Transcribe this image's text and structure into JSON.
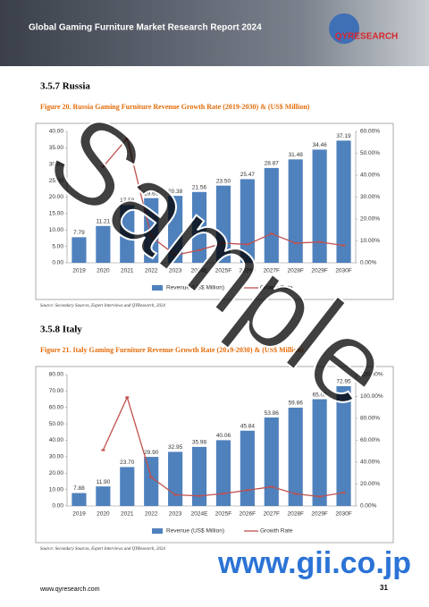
{
  "header": {
    "title": "Global Gaming Furniture Market Research Report 2024",
    "logo": "QYRESEARCH"
  },
  "sections": [
    {
      "heading": "3.5.7  Russia"
    },
    {
      "heading": "3.5.8  Italy"
    }
  ],
  "chart_data": [
    {
      "type": "combo",
      "title": "Figure 20.   Russia Gaming Furniture Revenue Growth Rate (2019-2030) & (US$ Million)",
      "categories": [
        "2019",
        "2020",
        "2021",
        "2022",
        "2023",
        "2024E",
        "2025F",
        "2026F",
        "2027F",
        "2028F",
        "2029F",
        "2030F"
      ],
      "series": [
        {
          "name": "Revenue (US$ Million)",
          "color": "#4f81bd",
          "values": [
            7.79,
            11.21,
            17.58,
            19.69,
            20.38,
            21.56,
            23.5,
            25.47,
            28.87,
            31.48,
            34.46,
            37.19
          ],
          "value_labels": [
            "7.79",
            "11.21",
            "17.58",
            "19.69",
            "20.38",
            "21.56",
            "23.50",
            "25.47",
            "28.87",
            "31.48",
            "34.46",
            "37.19"
          ]
        },
        {
          "name": "Growth Rate",
          "color": "#c0504d",
          "axis": "y2",
          "values": [
            null,
            43.9,
            56.8,
            12.0,
            3.5,
            5.8,
            9.0,
            8.4,
            13.3,
            9.0,
            9.5,
            7.9
          ]
        }
      ],
      "ylim": [
        0,
        40
      ],
      "yticks": [
        {
          "value": 0,
          "label": "0.00"
        },
        {
          "value": 5,
          "label": "5.00"
        },
        {
          "value": 10,
          "label": "10.00"
        },
        {
          "value": 15,
          "label": "15.00"
        },
        {
          "value": 20,
          "label": "20.00"
        },
        {
          "value": 25,
          "label": "25.00"
        },
        {
          "value": 30,
          "label": "30.00"
        },
        {
          "value": 35,
          "label": "35.00"
        },
        {
          "value": 40,
          "label": "40.00"
        }
      ],
      "y2lim": [
        0,
        60
      ],
      "y2ticks": [
        {
          "value": 0,
          "label": "0.00%"
        },
        {
          "value": 10,
          "label": "10.00%"
        },
        {
          "value": 20,
          "label": "20.00%"
        },
        {
          "value": 30,
          "label": "30.00%"
        },
        {
          "value": 40,
          "label": "40.00%"
        },
        {
          "value": 50,
          "label": "50.00%"
        },
        {
          "value": 60,
          "label": "60.00%"
        }
      ],
      "source": "Source: Secondary Sources, Expert Interviews and QYResearch, 2024"
    },
    {
      "type": "combo",
      "title": "Figure 21.   Italy Gaming Furniture Revenue Growth Rate (2019-2030) & (US$ Million)",
      "categories": [
        "2019",
        "2020",
        "2021",
        "2022",
        "2023",
        "2024E",
        "2025F",
        "2026F",
        "2027F",
        "2028F",
        "2029F",
        "2030F"
      ],
      "series": [
        {
          "name": "Revenue (US$ Million)",
          "color": "#4f81bd",
          "values": [
            7.88,
            11.9,
            23.7,
            29.9,
            32.95,
            35.98,
            40.06,
            45.84,
            53.86,
            59.86,
            65.0,
            72.95
          ],
          "value_labels": [
            "7.88",
            "11.90",
            "23.70",
            "29.90",
            "32.95",
            "35.98",
            "40.06",
            "45.84",
            "53.86",
            "59.86",
            "65.00",
            "72.95"
          ]
        },
        {
          "name": "Growth Rate",
          "color": "#c0504d",
          "axis": "y2",
          "values": [
            null,
            51.0,
            99.2,
            26.2,
            10.2,
            9.2,
            11.3,
            14.4,
            17.5,
            11.1,
            8.6,
            12.2
          ]
        }
      ],
      "ylim": [
        0,
        80
      ],
      "yticks": [
        {
          "value": 0,
          "label": "0.00"
        },
        {
          "value": 10,
          "label": "10.00"
        },
        {
          "value": 20,
          "label": "20.00"
        },
        {
          "value": 30,
          "label": "30.00"
        },
        {
          "value": 40,
          "label": "40.00"
        },
        {
          "value": 50,
          "label": "50.00"
        },
        {
          "value": 60,
          "label": "60.00"
        },
        {
          "value": 70,
          "label": "70.00"
        },
        {
          "value": 80,
          "label": "80.00"
        }
      ],
      "y2lim": [
        0,
        120
      ],
      "y2ticks": [
        {
          "value": 0,
          "label": "0.00%"
        },
        {
          "value": 20,
          "label": "20.00%"
        },
        {
          "value": 40,
          "label": "40.00%"
        },
        {
          "value": 60,
          "label": "60.00%"
        },
        {
          "value": 80,
          "label": "80.00%"
        },
        {
          "value": 100,
          "label": "100.00%"
        },
        {
          "value": 120,
          "label": "120.00%"
        }
      ],
      "source": "Source: Secondary Sources, Expert Interviews and QYResearch, 2024"
    }
  ],
  "footer": {
    "url": "www.qyresearch.com",
    "page": "31"
  },
  "watermark": {
    "text": "Sample",
    "site": "www.gii.co.jp"
  }
}
